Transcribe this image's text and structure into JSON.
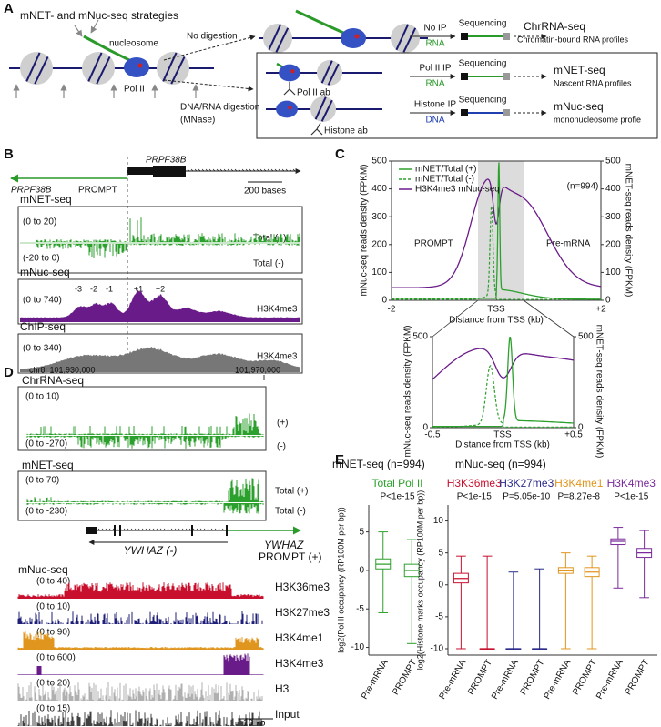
{
  "panel_labels": [
    "A",
    "B",
    "C",
    "D",
    "E"
  ],
  "a": {
    "title": "mNET- and mNuc-seq strategies",
    "nucleosome": "nucleosome",
    "pol2": "Pol II",
    "no_digestion": "No digestion",
    "digestion": "DNA/RNA digestion",
    "mnase": "(MNase)",
    "rows": [
      {
        "ip": "No IP",
        "molecule": "RNA",
        "seq": "Sequencing",
        "name": "ChrRNA-seq",
        "desc": "Chromatin-bound RNA profiles"
      },
      {
        "ip": "Pol II IP",
        "molecule": "RNA",
        "seq": "Sequencing",
        "name": "mNET-seq",
        "desc": "Nascent RNA profiles",
        "antibody": "Pol II ab"
      },
      {
        "ip": "Histone IP",
        "molecule": "DNA",
        "seq": "Sequencing",
        "name": "mNuc-seq",
        "desc": "mononucleosome profie",
        "antibody": "Histone ab"
      }
    ]
  },
  "b": {
    "gene": "PRPF38B",
    "prompt_gene": "PRPF38B",
    "prompt": "PROMPT",
    "scale": "200 bases",
    "tracks": [
      {
        "title": "mNET-seq",
        "ranges": [
          "(0 to 20)",
          "(-20 to 0)"
        ],
        "labels": [
          "Total (+)",
          "Total (-)"
        ]
      },
      {
        "title": "mNuc-seq",
        "ranges": [
          "(0 to 740)"
        ],
        "labels": [
          "H3K4me3"
        ],
        "nucleosomes": [
          "-3",
          "-2",
          "-1",
          "+1",
          "+2"
        ]
      },
      {
        "title": "ChIP-seq",
        "ranges": [
          "(0 to 340)"
        ],
        "labels": [
          "H3K4me3"
        ]
      }
    ]
  },
  "c": {
    "legend": [
      {
        "name": "mNET/Total (+)",
        "color": "#2ca02c"
      },
      {
        "name": "mNET/Total (-)",
        "color": "#2ca02c"
      },
      {
        "name": "H3K4me3 mNuc-seq",
        "color": "#6a1b8a"
      }
    ],
    "n": "(n=994)",
    "regions": [
      "PROMPT",
      "Pre-mRNA"
    ],
    "ylabel": "mNuc-seq reads density (FPKM)",
    "y2label": "mNET-seq reads density (FPKM)",
    "ylim": [
      0,
      500
    ],
    "yticks": [
      0,
      100,
      200,
      300,
      400,
      500
    ],
    "y2ticks": [
      0,
      100,
      200,
      300,
      400,
      500
    ],
    "xticks": [
      "-2",
      "TSS",
      "+2"
    ],
    "xlabel": "Distance from TSS (kb)",
    "inset": {
      "ylim": [
        0,
        500
      ],
      "yticks": [
        0,
        500
      ],
      "y2ticks": [
        0,
        500
      ],
      "xticks": [
        "-0.5",
        "TSS",
        "+0.5"
      ],
      "ylabel": "mNuc-seq reads density (FPKM)",
      "y2label": "mNET-seq reads density (FPKM)",
      "xlabel": "Distance from TSS (kb)"
    }
  },
  "d": {
    "coords": [
      "chr8: 101,930,000",
      "101,970,000"
    ],
    "tracks": [
      {
        "title": "ChrRNA-seq",
        "ranges": [
          "(0 to 10)",
          "(0 to -270)"
        ],
        "labels": [
          "(+)",
          "(-)"
        ]
      },
      {
        "title": "mNET-seq",
        "ranges": [
          "(0 to 70)",
          "(0 to -230)"
        ],
        "labels": [
          "Total (+)",
          "Total (-)"
        ]
      }
    ],
    "gene": "YWHAZ (-)",
    "prompt_gene": "YWHAZ",
    "prompt": "PROMPT (+)",
    "mnuc_title": "mNuc-seq",
    "mnuc": [
      {
        "range": "(0 to 40)",
        "label": "H3K36me3",
        "color": "#c8102e"
      },
      {
        "range": "(0 to 10)",
        "label": "H3K27me3",
        "color": "#1f1f7a"
      },
      {
        "range": "(0 to 90)",
        "label": "H3K4me1",
        "color": "#e0961e"
      },
      {
        "range": "(0 to 600)",
        "label": "H3K4me3",
        "color": "#6a1b8a"
      },
      {
        "range": "(0 to 20)",
        "label": "H3",
        "color": "#b0b0b0"
      },
      {
        "range": "(0 to 15)",
        "label": "Input",
        "color": "#404040"
      }
    ],
    "scale": "10 kb"
  },
  "e": {
    "mnet": {
      "title": "mNET-seq (n=994)",
      "ylabel": "log2(Pol II occupancy (RP100M per bp))",
      "ylim": [
        -11,
        8.5
      ],
      "yticks": [
        5,
        0,
        -5,
        -10
      ],
      "series": [
        {
          "name": "Total Pol II",
          "color": "#2ca02c",
          "p": "P<1e-15",
          "categories": [
            "Pre-mRNA",
            "PROMPT"
          ],
          "boxes": [
            [
              -5.5,
              0.2,
              0.8,
              1.5,
              5
            ],
            [
              -9.5,
              -0.8,
              0,
              0.8,
              4
            ]
          ]
        }
      ]
    },
    "mnuc": {
      "title": "mNuc-seq (n=994)",
      "ylabel": "log2(Histone marks occupancy (RP100M per bp))",
      "ylim": [
        -11,
        12.5
      ],
      "yticks": [
        10,
        5,
        0,
        -5,
        -10
      ],
      "series": [
        {
          "name": "H3K36me3",
          "color": "#c8102e",
          "p": "P<1e-15",
          "categories": [
            "Pre-mRNA",
            "PROMPT"
          ],
          "boxes": [
            [
              -10,
              0.3,
              1,
              1.8,
              4.5
            ],
            [
              -10,
              -10,
              -10,
              -10,
              4.5
            ]
          ]
        },
        {
          "name": "H3K27me3",
          "color": "#2a2a8a",
          "p": "P=5.05e-10",
          "categories": [
            "Pre-mRNA",
            "PROMPT"
          ],
          "boxes": [
            [
              -10,
              -10,
              -10,
              -10,
              2
            ],
            [
              -10,
              -10,
              -10,
              -10,
              2.5
            ]
          ]
        },
        {
          "name": "H3K4me1",
          "color": "#e0961e",
          "p": "P=8.27e-8",
          "categories": [
            "Pre-mRNA",
            "PROMPT"
          ],
          "boxes": [
            [
              -10,
              1.8,
              2.2,
              2.7,
              5
            ],
            [
              -10,
              1.3,
              2,
              2.7,
              4.5
            ]
          ]
        },
        {
          "name": "H3K4me3",
          "color": "#7a2a9a",
          "p": "P<1e-15",
          "categories": [
            "Pre-mRNA",
            "PROMPT"
          ],
          "boxes": [
            [
              -0.5,
              6.3,
              6.8,
              7.2,
              9
            ],
            [
              -2,
              4.3,
              5,
              5.7,
              8.5
            ]
          ]
        }
      ]
    }
  }
}
